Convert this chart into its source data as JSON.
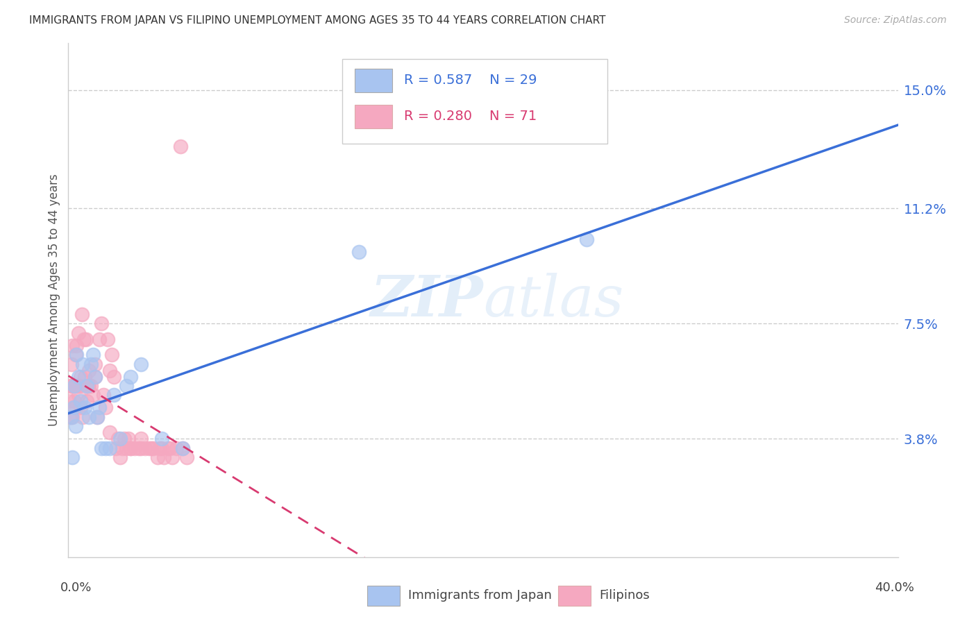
{
  "title": "IMMIGRANTS FROM JAPAN VS FILIPINO UNEMPLOYMENT AMONG AGES 35 TO 44 YEARS CORRELATION CHART",
  "source": "Source: ZipAtlas.com",
  "ylabel": "Unemployment Among Ages 35 to 44 years",
  "ytick_values": [
    3.8,
    7.5,
    11.2,
    15.0
  ],
  "xlim": [
    0.0,
    40.0
  ],
  "ylim": [
    0.0,
    16.5
  ],
  "legend_blue_label": "Immigrants from Japan",
  "legend_pink_label": "Filipinos",
  "blue_color": "#a8c4f0",
  "pink_color": "#f5a8c0",
  "blue_scatter_edge": "#7aabee",
  "pink_scatter_edge": "#ee7aaa",
  "blue_line_color": "#3a6fd8",
  "pink_line_color": "#d83a70",
  "watermark_zip": "ZIP",
  "watermark_atlas": "atlas",
  "japan_x": [
    0.15,
    0.2,
    0.25,
    0.3,
    0.35,
    0.4,
    0.5,
    0.6,
    0.7,
    0.8,
    0.9,
    1.0,
    1.1,
    1.2,
    1.3,
    1.4,
    1.5,
    1.6,
    1.8,
    2.0,
    2.2,
    2.5,
    2.8,
    3.0,
    3.5,
    4.5,
    5.5,
    14.0,
    25.0
  ],
  "japan_y": [
    4.5,
    3.2,
    4.8,
    5.5,
    4.2,
    6.5,
    5.8,
    5.0,
    6.2,
    4.8,
    5.5,
    4.5,
    6.2,
    6.5,
    5.8,
    4.5,
    4.8,
    3.5,
    3.5,
    3.5,
    5.2,
    3.8,
    5.5,
    5.8,
    6.2,
    3.8,
    3.5,
    9.8,
    10.2
  ],
  "filipino_x": [
    0.05,
    0.1,
    0.1,
    0.15,
    0.15,
    0.2,
    0.2,
    0.2,
    0.25,
    0.3,
    0.3,
    0.35,
    0.4,
    0.4,
    0.45,
    0.5,
    0.5,
    0.55,
    0.6,
    0.6,
    0.65,
    0.7,
    0.75,
    0.8,
    0.85,
    0.9,
    0.95,
    1.0,
    1.0,
    1.1,
    1.2,
    1.3,
    1.3,
    1.4,
    1.5,
    1.6,
    1.7,
    1.8,
    1.9,
    2.0,
    2.0,
    2.1,
    2.2,
    2.3,
    2.4,
    2.5,
    2.6,
    2.7,
    2.8,
    2.9,
    3.0,
    3.0,
    3.2,
    3.4,
    3.5,
    3.5,
    3.7,
    3.9,
    4.0,
    4.1,
    4.3,
    4.4,
    4.5,
    4.6,
    4.8,
    4.9,
    5.0,
    5.2,
    5.4,
    5.5,
    5.7
  ],
  "filipino_y": [
    5.0,
    5.5,
    4.5,
    5.5,
    6.2,
    5.5,
    4.5,
    6.8,
    5.5,
    5.0,
    4.8,
    6.5,
    5.5,
    6.8,
    5.5,
    5.2,
    7.2,
    5.5,
    5.8,
    4.8,
    7.8,
    4.5,
    7.0,
    5.8,
    7.0,
    5.0,
    5.5,
    6.0,
    5.5,
    5.5,
    5.2,
    6.2,
    5.8,
    4.5,
    7.0,
    7.5,
    5.2,
    4.8,
    7.0,
    6.0,
    4.0,
    6.5,
    5.8,
    3.5,
    3.8,
    3.2,
    3.5,
    3.8,
    3.5,
    3.8,
    3.5,
    3.5,
    3.5,
    3.5,
    3.8,
    3.5,
    3.5,
    3.5,
    3.5,
    3.5,
    3.2,
    3.5,
    3.5,
    3.2,
    3.5,
    3.5,
    3.2,
    3.5,
    13.2,
    3.5,
    3.2
  ]
}
